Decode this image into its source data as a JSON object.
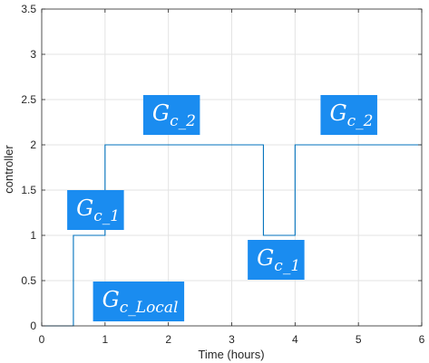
{
  "chart_data": {
    "type": "line",
    "title": "",
    "xlabel": "Time (hours)",
    "ylabel": "controller",
    "xlim": [
      0,
      6
    ],
    "ylim": [
      0,
      3.5
    ],
    "grid": true,
    "x_ticks": [
      0,
      1,
      2,
      3,
      4,
      5,
      6
    ],
    "y_ticks": [
      0,
      0.5,
      1,
      1.5,
      2,
      2.5,
      3,
      3.5
    ],
    "x_tick_labels": [
      "0",
      "1",
      "2",
      "3",
      "4",
      "5",
      "6"
    ],
    "y_tick_labels": [
      "0",
      "0.5",
      "1",
      "1.5",
      "2",
      "2.5",
      "3",
      "3.5"
    ],
    "series": [
      {
        "color": "#0072BD",
        "step": true,
        "x": [
          0,
          0.5,
          0.5,
          1,
          1,
          3.5,
          3.5,
          4,
          4,
          6
        ],
        "y": [
          0,
          0,
          1,
          1,
          2,
          2,
          1,
          1,
          2,
          2
        ]
      }
    ],
    "annotations": [
      {
        "base": "G",
        "sub": "c_Local",
        "x": 1.53,
        "y": 0.27
      },
      {
        "base": "G",
        "sub": "c_1",
        "x": 0.85,
        "y": 1.28
      },
      {
        "base": "G",
        "sub": "c_2",
        "x": 2.05,
        "y": 2.33
      },
      {
        "base": "G",
        "sub": "c_1",
        "x": 3.7,
        "y": 0.73
      },
      {
        "base": "G",
        "sub": "c_2",
        "x": 4.85,
        "y": 2.33
      }
    ],
    "annotation_color": "#1a8cf0"
  }
}
